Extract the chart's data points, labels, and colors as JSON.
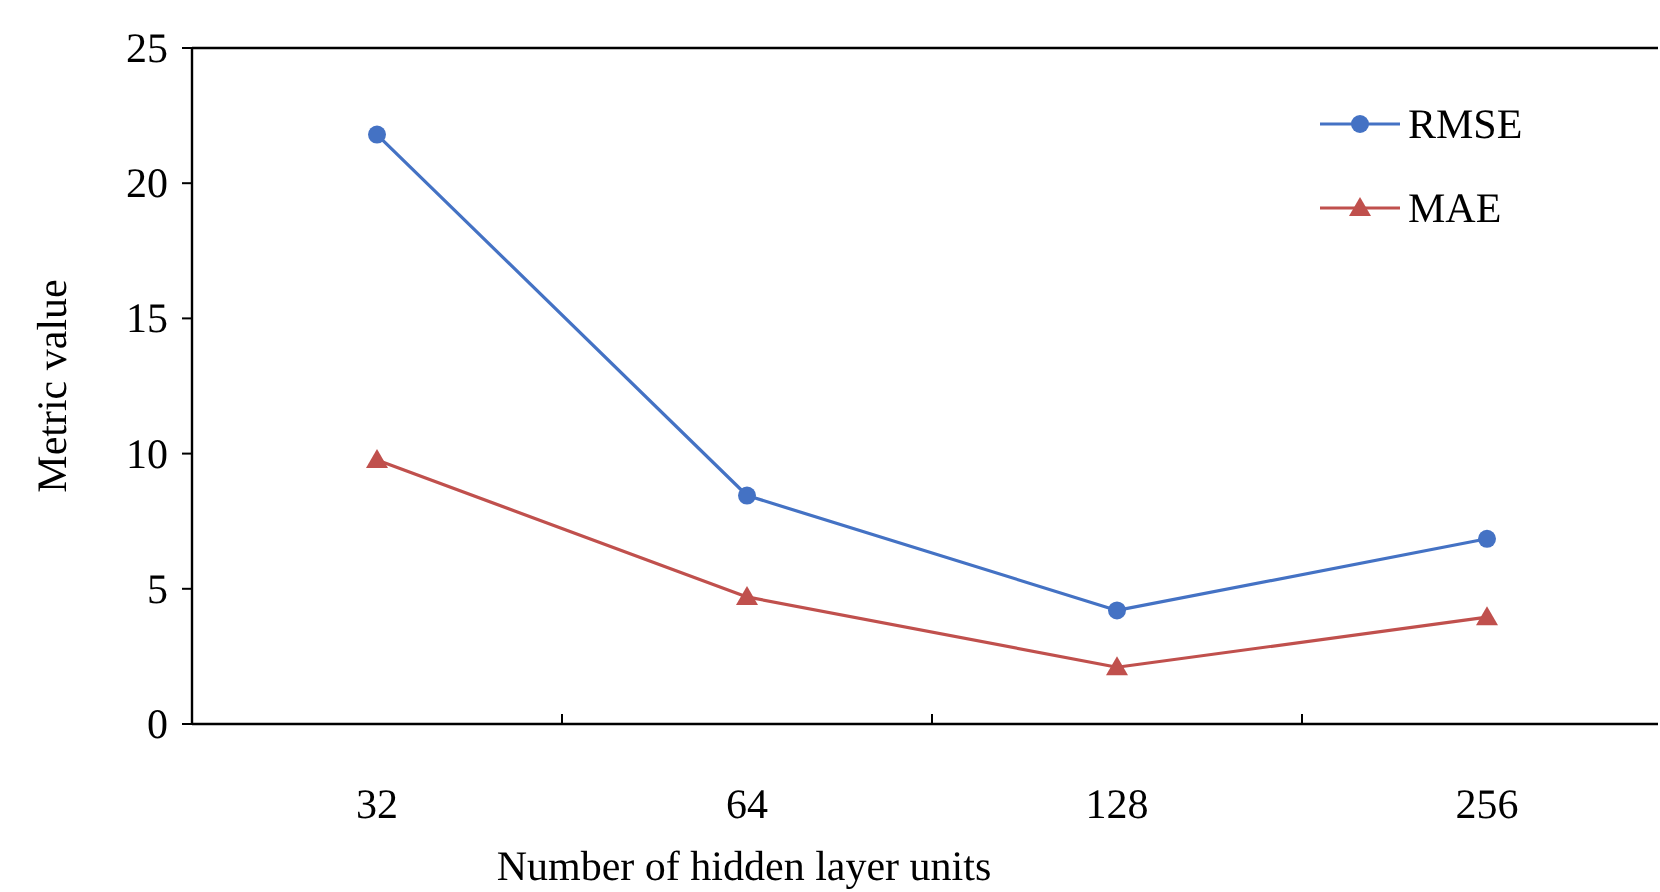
{
  "chart_data": {
    "type": "line",
    "xlabel": "Number of hidden layer units",
    "ylabel": "Metric value",
    "categories": [
      "32",
      "64",
      "128",
      "256"
    ],
    "series": [
      {
        "name": "RMSE",
        "color": "#4472c4",
        "marker": "circle",
        "values": [
          21.8,
          8.45,
          4.2,
          6.85
        ]
      },
      {
        "name": "MAE",
        "color": "#c0504d",
        "marker": "triangle",
        "values": [
          9.76,
          4.7,
          2.1,
          3.95
        ]
      }
    ],
    "ylim": [
      0,
      25
    ],
    "yticks": [
      0,
      5,
      10,
      15,
      20,
      25
    ],
    "grid": false,
    "legend": "top right",
    "line_style": "solid"
  }
}
